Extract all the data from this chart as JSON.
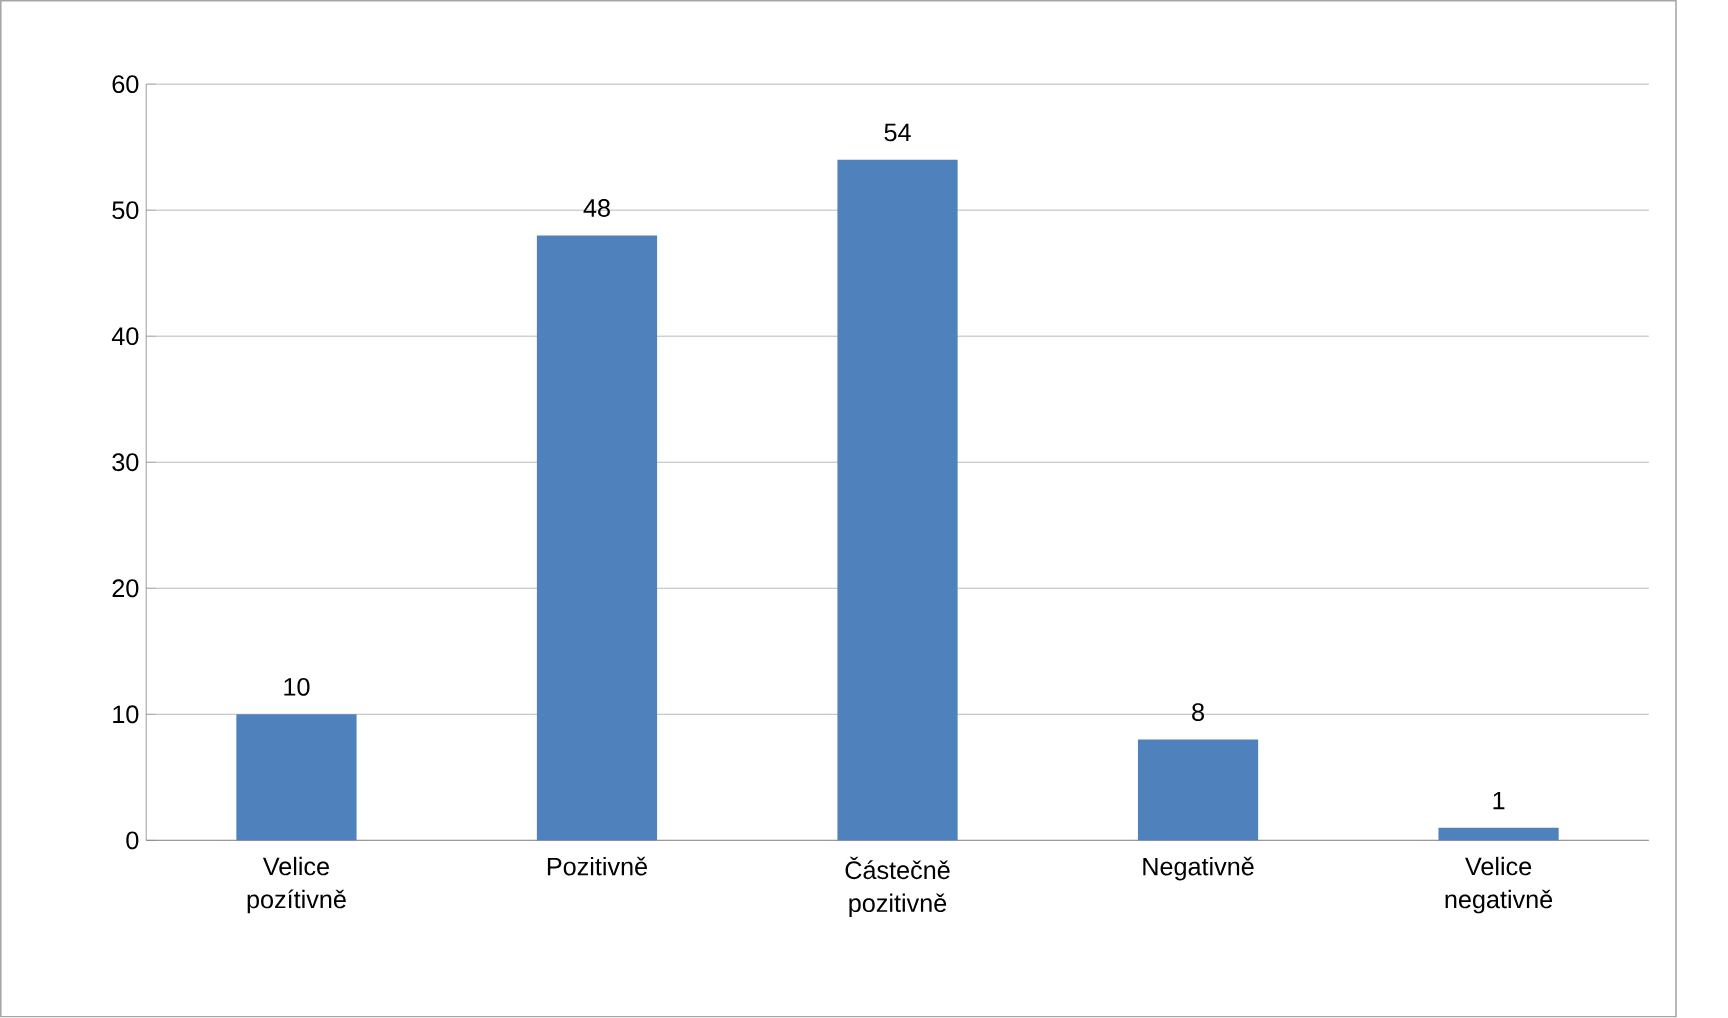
{
  "chart_data": {
    "type": "bar",
    "categories": [
      "Velice pozítivně",
      "Pozitivně",
      "Částečně pozitivně",
      "Negativně",
      "Velice negativně"
    ],
    "values": [
      10,
      48,
      54,
      8,
      1
    ],
    "color": "#4f81bd",
    "ylim": [
      0,
      60
    ],
    "yticks": [
      0,
      10,
      20,
      30,
      40,
      50,
      60
    ],
    "grid": "y",
    "data_labels": true
  }
}
